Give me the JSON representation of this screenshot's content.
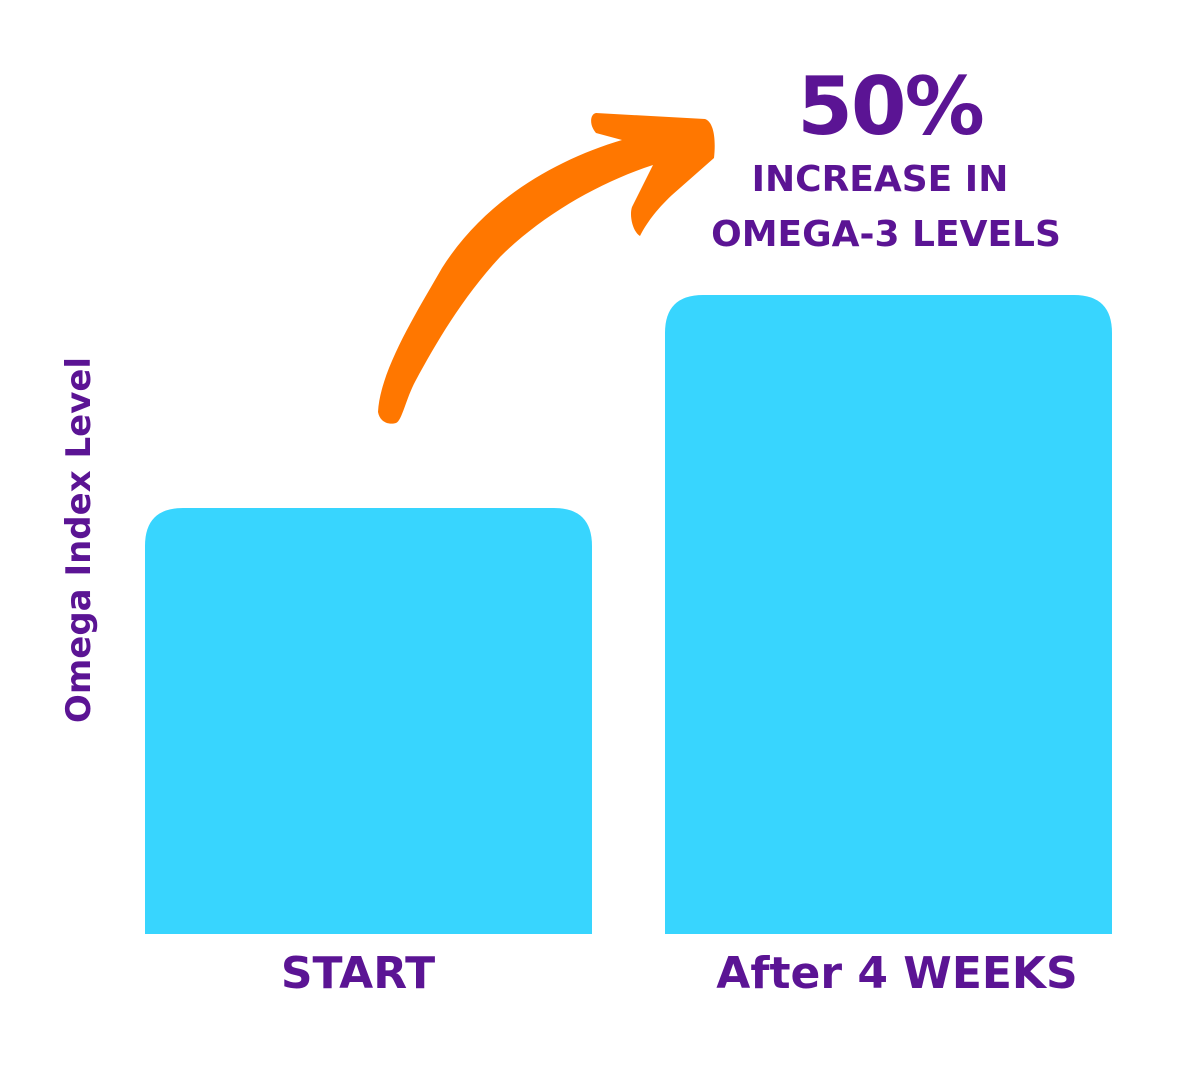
{
  "chart_data": {
    "type": "bar",
    "categories": [
      "START",
      "After 4 WEEKS"
    ],
    "values": [
      1,
      1.5
    ],
    "title": "",
    "xlabel": "",
    "ylabel": "Omega Index Level",
    "ylim": [
      0,
      1.5
    ],
    "grid": false,
    "annotation": {
      "headline": "50%",
      "line1": "INCREASE IN",
      "line2": "OMEGA-3 LEVELS"
    },
    "colors": {
      "bar": "#38D5FE",
      "text": "#5B1494",
      "arrow": "#FF7700"
    }
  }
}
